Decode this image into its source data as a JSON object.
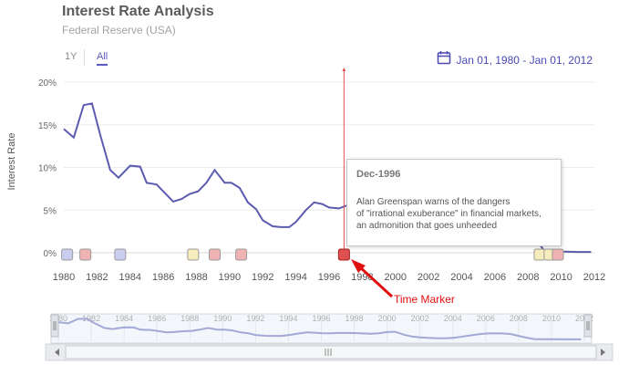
{
  "title": "Interest Rate Analysis",
  "subtitle": "Federal Reserve (USA)",
  "range_buttons": {
    "one_year": "1Y",
    "all": "All",
    "selected": "All"
  },
  "date_range": {
    "text": "Jan 01, 1980 - Jan 01, 2012",
    "icon": "calendar-icon"
  },
  "colors": {
    "line": "#5b5bb0",
    "navigator_line": "#a3a8d6",
    "marker_line": "#e05050",
    "event_blue": "#c9cef0",
    "event_red": "#f0b3b3",
    "event_yellow": "#f7ecbc",
    "annotation": "#e01010"
  },
  "tooltip": {
    "title": "Dec-1996",
    "body": "Alan Greenspan warns of the dangers\nof \"irrational exuberance\" in financial markets,\nan admonition that goes unheeded"
  },
  "annotation": {
    "label": "Time Marker"
  },
  "chart_data": {
    "type": "line",
    "title": "Interest Rate Analysis",
    "subtitle": "Federal Reserve (USA)",
    "ylabel": "Interest Rate",
    "xlabel": "",
    "xlim": [
      1980,
      2012
    ],
    "ylim": [
      0,
      20
    ],
    "y_ticks": [
      "0%",
      "5%",
      "10%",
      "15%",
      "20%"
    ],
    "x_ticks": [
      "1980",
      "1982",
      "1984",
      "1986",
      "1988",
      "1990",
      "1992",
      "1994",
      "1996",
      "1998",
      "2000",
      "2002",
      "2004",
      "2006",
      "2008",
      "2010",
      "2012"
    ],
    "grid": true,
    "series": [
      {
        "x": [
          1980.0,
          1980.6,
          1981.2,
          1981.7,
          1982.2,
          1982.8,
          1983.3,
          1984.0,
          1984.6,
          1985.0,
          1985.6,
          1986.0,
          1986.6,
          1987.1,
          1987.6,
          1988.1,
          1988.6,
          1989.1,
          1989.7,
          1990.1,
          1990.6,
          1991.1,
          1991.6,
          1992.0,
          1992.6,
          1993.1,
          1993.6,
          1994.0,
          1994.6,
          1995.1,
          1995.6,
          1996.0,
          1996.6,
          1997.0,
          1997.5,
          1998.0,
          1998.5,
          1999.0,
          1999.5,
          2000.0,
          2000.5,
          2001.0,
          2001.5,
          2002.0,
          2002.5,
          2003.0,
          2003.5,
          2004.0,
          2004.5,
          2005.0,
          2005.5,
          2006.0,
          2006.5,
          2007.0,
          2007.5,
          2008.0,
          2008.5,
          2009.0,
          2009.5,
          2010.0,
          2011.0,
          2011.8
        ],
        "values": [
          14.5,
          13.5,
          17.3,
          17.5,
          13.8,
          9.7,
          8.8,
          10.2,
          10.1,
          8.2,
          8.0,
          7.2,
          6.0,
          6.3,
          6.9,
          7.2,
          8.2,
          9.7,
          8.2,
          8.2,
          7.6,
          5.9,
          5.1,
          3.8,
          3.1,
          3.0,
          3.0,
          3.6,
          5.0,
          5.9,
          5.7,
          5.3,
          5.2,
          5.5,
          5.5,
          5.4,
          5.1,
          4.8,
          5.2,
          6.2,
          6.5,
          4.1,
          2.5,
          1.7,
          1.3,
          1.1,
          1.0,
          1.4,
          2.2,
          3.2,
          4.2,
          5.0,
          5.25,
          5.1,
          4.6,
          3.0,
          1.5,
          0.2,
          0.15,
          0.15,
          0.1,
          0.1
        ]
      }
    ],
    "time_marker": {
      "date": "Dec-1996",
      "x": 1996.9
    },
    "event_markers": [
      {
        "x": 1980.2,
        "color": "blue"
      },
      {
        "x": 1981.3,
        "color": "red"
      },
      {
        "x": 1983.4,
        "color": "blue"
      },
      {
        "x": 1987.8,
        "color": "yellow"
      },
      {
        "x": 1989.1,
        "color": "red"
      },
      {
        "x": 1990.7,
        "color": "red"
      },
      {
        "x": 1996.9,
        "color": "red",
        "active": true
      },
      {
        "x": 2008.7,
        "color": "yellow"
      },
      {
        "x": 2009.3,
        "color": "yellow"
      },
      {
        "x": 2009.8,
        "color": "red"
      }
    ],
    "navigator": {
      "x_ticks": [
        "1980",
        "1982",
        "1984",
        "1986",
        "1988",
        "1990",
        "1992",
        "1994",
        "1996",
        "1998",
        "2000",
        "2002",
        "2004",
        "2006",
        "2008",
        "2010",
        "2012"
      ]
    }
  }
}
